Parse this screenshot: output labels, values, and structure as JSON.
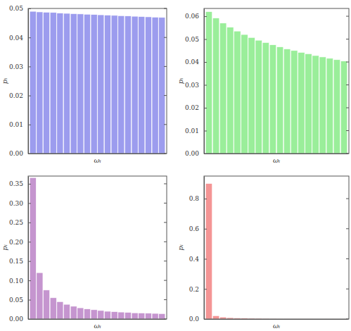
{
  "chart_data": [
    {
      "type": "bar",
      "x_label": "ωᵢ",
      "y_label": "pᵢ",
      "color": "#9c9cee",
      "categories": [
        null,
        null,
        null,
        null,
        null,
        null,
        null,
        null,
        null,
        null,
        null,
        null,
        null,
        null,
        null,
        null,
        null,
        null,
        null,
        null
      ],
      "values": [
        0.049,
        0.0488,
        0.0487,
        0.0486,
        0.0484,
        0.0483,
        0.0482,
        0.0481,
        0.048,
        0.0479,
        0.0478,
        0.0477,
        0.0476,
        0.0475,
        0.0474,
        0.0473,
        0.0472,
        0.0471,
        0.047,
        0.0469
      ],
      "ylim": [
        0,
        0.05
      ],
      "yticks": [
        {
          "value": 0,
          "label": "0.00"
        },
        {
          "value": 0.01,
          "label": "0.01"
        },
        {
          "value": 0.02,
          "label": "0.02"
        },
        {
          "value": 0.03,
          "label": "0.03"
        },
        {
          "value": 0.04,
          "label": "0.04"
        },
        {
          "value": 0.05,
          "label": "0.05"
        }
      ],
      "grid": false,
      "tick_labels": "y"
    },
    {
      "type": "bar",
      "x_label": "ωᵢ",
      "y_label": "pᵢ",
      "color": "#9aee9a",
      "categories": [
        null,
        null,
        null,
        null,
        null,
        null,
        null,
        null,
        null,
        null,
        null,
        null,
        null,
        null,
        null,
        null,
        null,
        null,
        null,
        null
      ],
      "values": [
        0.062,
        0.0592,
        0.057,
        0.0552,
        0.0535,
        0.052,
        0.0507,
        0.0495,
        0.0485,
        0.0475,
        0.0466,
        0.0457,
        0.045,
        0.0442,
        0.0436,
        0.0428,
        0.0422,
        0.0416,
        0.041,
        0.0404
      ],
      "ylim": [
        0,
        0.0634
      ],
      "yticks": [
        {
          "value": 0,
          "label": "0.00"
        },
        {
          "value": 0.01,
          "label": "0.01"
        },
        {
          "value": 0.02,
          "label": "0.02"
        },
        {
          "value": 0.03,
          "label": "0.03"
        },
        {
          "value": 0.04,
          "label": "0.04"
        },
        {
          "value": 0.05,
          "label": "0.05"
        },
        {
          "value": 0.06,
          "label": "0.06"
        }
      ],
      "grid": false,
      "tick_labels": "y"
    },
    {
      "type": "bar",
      "x_label": "ωᵢ",
      "y_label": "pᵢ",
      "color": "#c595cf",
      "categories": [
        null,
        null,
        null,
        null,
        null,
        null,
        null,
        null,
        null,
        null,
        null,
        null,
        null,
        null,
        null,
        null,
        null,
        null,
        null,
        null
      ],
      "values": [
        0.366,
        0.12,
        0.075,
        0.055,
        0.045,
        0.038,
        0.033,
        0.029,
        0.026,
        0.024,
        0.022,
        0.02,
        0.019,
        0.018,
        0.017,
        0.016,
        0.0155,
        0.015,
        0.0145,
        0.014
      ],
      "ylim": [
        0,
        0.37
      ],
      "yticks": [
        {
          "value": 0,
          "label": "0.00"
        },
        {
          "value": 0.05,
          "label": "0.05"
        },
        {
          "value": 0.1,
          "label": "0.10"
        },
        {
          "value": 0.15,
          "label": "0.15"
        },
        {
          "value": 0.2,
          "label": "0.20"
        },
        {
          "value": 0.25,
          "label": "0.25"
        },
        {
          "value": 0.3,
          "label": "0.30"
        },
        {
          "value": 0.35,
          "label": "0.35"
        }
      ],
      "grid": false,
      "tick_labels": "y"
    },
    {
      "type": "bar",
      "x_label": "ωᵢ",
      "y_label": "pᵢ",
      "color": "#f49595",
      "categories": [
        null,
        null,
        null,
        null,
        null,
        null,
        null,
        null,
        null,
        null,
        null,
        null,
        null,
        null,
        null,
        null,
        null,
        null,
        null,
        null
      ],
      "values": [
        0.9,
        0.022,
        0.013,
        0.009,
        0.007,
        0.006,
        0.005,
        0.0045,
        0.004,
        0.0036,
        0.0033,
        0.003,
        0.0028,
        0.0026,
        0.0024,
        0.0022,
        0.0021,
        0.002,
        0.0019,
        0.0018
      ],
      "ylim": [
        0,
        0.95
      ],
      "yticks": [
        {
          "value": 0,
          "label": "0.0"
        },
        {
          "value": 0.2,
          "label": "0.2"
        },
        {
          "value": 0.4,
          "label": "0.4"
        },
        {
          "value": 0.6,
          "label": "0.6"
        },
        {
          "value": 0.8,
          "label": "0.8"
        }
      ],
      "grid": false,
      "tick_labels": "y"
    }
  ]
}
